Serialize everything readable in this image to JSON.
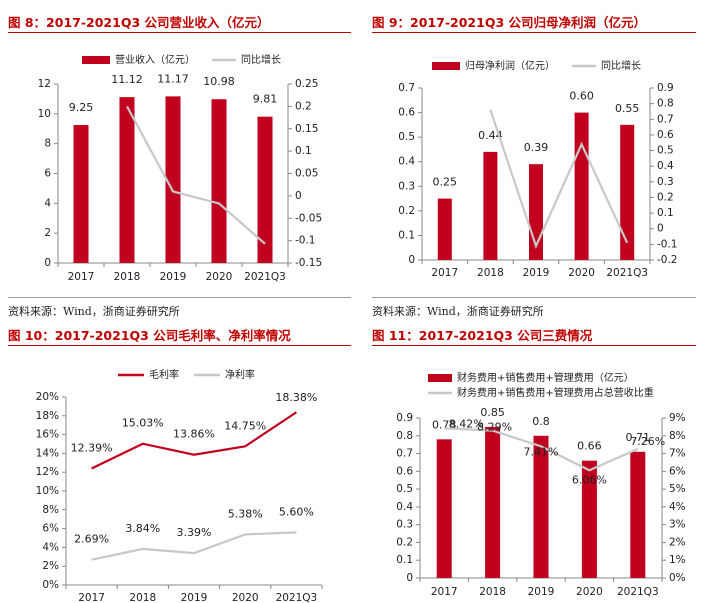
{
  "figures": {
    "f8": {
      "title": "图 8：2017-2021Q3 公司营业收入（亿元）",
      "source": "资料来源：Wind，浙商证券研究所"
    },
    "f9": {
      "title": "图 9：2017-2021Q3 公司归母净利润（亿元）",
      "source": "资料来源：Wind，浙商证券研究所"
    },
    "f10": {
      "title": "图 10：2017-2021Q3 公司毛利率、净利率情况"
    },
    "f11": {
      "title": "图 11：2017-2021Q3 公司三费情况"
    }
  },
  "colors": {
    "bar": "#c0001e",
    "grey": "#c8c8c8",
    "axis": "#888888",
    "title_red": "#c00000"
  },
  "chart_data": [
    {
      "id": "f8",
      "type": "bar+line",
      "categories": [
        "2017",
        "2018",
        "2019",
        "2020",
        "2021Q3"
      ],
      "bar": {
        "name": "营业收入（亿元）",
        "values": [
          9.25,
          11.12,
          11.17,
          10.98,
          9.81
        ],
        "labels": [
          "9.25",
          "11.12",
          "11.17",
          "10.98",
          "9.81"
        ]
      },
      "line": {
        "name": "同比增长",
        "points": [
          [
            1,
            0.2
          ],
          [
            2,
            0.01
          ],
          [
            3,
            -0.017
          ],
          [
            4,
            -0.107
          ]
        ]
      },
      "y_left": {
        "min": 0,
        "max": 12,
        "step": 2,
        "ticks": [
          "0",
          "2",
          "4",
          "6",
          "8",
          "10",
          "12"
        ]
      },
      "y_right": {
        "min": -0.15,
        "max": 0.25,
        "ticks": [
          "-0.15",
          "-0.1",
          "-0.05",
          "0",
          "0.05",
          "0.1",
          "0.15",
          "0.2",
          "0.25"
        ]
      },
      "legend": "top"
    },
    {
      "id": "f9",
      "type": "bar+line",
      "categories": [
        "2017",
        "2018",
        "2019",
        "2020",
        "2021Q3"
      ],
      "bar": {
        "name": "归母净利润（亿元）",
        "values": [
          0.25,
          0.44,
          0.39,
          0.6,
          0.55
        ],
        "labels": [
          "0.25",
          "0.44",
          "0.39",
          "0.60",
          "0.55"
        ]
      },
      "line": {
        "name": "同比增长",
        "points": [
          [
            1,
            0.76
          ],
          [
            2,
            -0.11
          ],
          [
            3,
            0.54
          ],
          [
            4,
            -0.09
          ]
        ]
      },
      "y_left": {
        "min": 0,
        "max": 0.7,
        "ticks": [
          "0",
          "0.1",
          "0.2",
          "0.3",
          "0.4",
          "0.5",
          "0.6",
          "0.7"
        ]
      },
      "y_right": {
        "min": -0.2,
        "max": 0.9,
        "ticks": [
          "-0.2",
          "-0.1",
          "0",
          "0.1",
          "0.2",
          "0.3",
          "0.4",
          "0.5",
          "0.6",
          "0.7",
          "0.8",
          "0.9"
        ]
      },
      "legend": "top"
    },
    {
      "id": "f10",
      "type": "line",
      "categories": [
        "2017",
        "2018",
        "2019",
        "2020",
        "2021Q3"
      ],
      "series": [
        {
          "name": "毛利率",
          "values": [
            12.39,
            15.03,
            13.86,
            14.75,
            18.38
          ],
          "labels": [
            "12.39%",
            "15.03%",
            "13.86%",
            "14.75%",
            "18.38%"
          ],
          "color": "#c0001e"
        },
        {
          "name": "净利率",
          "values": [
            2.69,
            3.84,
            3.39,
            5.38,
            5.6
          ],
          "labels": [
            "2.69%",
            "3.84%",
            "3.39%",
            "5.38%",
            "5.60%"
          ],
          "color": "#c8c8c8"
        }
      ],
      "y": {
        "min": 0,
        "max": 20,
        "ticks": [
          "0%",
          "2%",
          "4%",
          "6%",
          "8%",
          "10%",
          "12%",
          "14%",
          "16%",
          "18%",
          "20%"
        ]
      },
      "legend": "top"
    },
    {
      "id": "f11",
      "type": "bar+line",
      "categories": [
        "2017",
        "2018",
        "2019",
        "2020",
        "2021Q3"
      ],
      "bar": {
        "name": "财务费用+销售费用+管理费用（亿元）",
        "values": [
          0.78,
          0.85,
          0.8,
          0.66,
          0.71
        ],
        "labels": [
          "0.78",
          "0.85",
          "0.8",
          "0.66",
          "0.71"
        ]
      },
      "line": {
        "name": "财务费用+销售费用+管理费用占总营收比重",
        "values": [
          8.42,
          8.29,
          7.41,
          6.06,
          7.26
        ],
        "labels": [
          "8.42%",
          "8.29%",
          "7.41%",
          "6.06%",
          "7.26%"
        ]
      },
      "y_left": {
        "min": 0,
        "max": 0.9,
        "ticks": [
          "0",
          "0.1",
          "0.2",
          "0.3",
          "0.4",
          "0.5",
          "0.6",
          "0.7",
          "0.8",
          "0.9"
        ]
      },
      "y_right": {
        "min": 0,
        "max": 9,
        "ticks": [
          "0%",
          "1%",
          "2%",
          "3%",
          "4%",
          "5%",
          "6%",
          "7%",
          "8%",
          "9%"
        ]
      },
      "legend": "top"
    }
  ]
}
